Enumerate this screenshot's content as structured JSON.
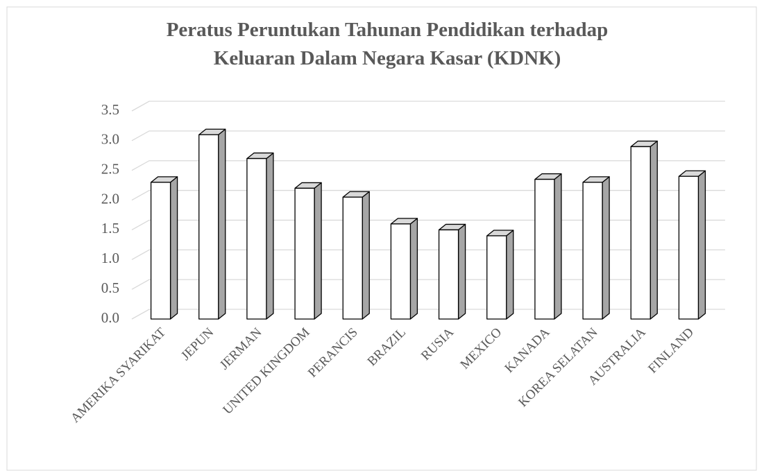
{
  "chart_data": {
    "type": "bar3d",
    "title": [
      "Peratus Peruntukan Tahunan Pendidikan terhadap",
      "Keluaran Dalam Negara Kasar (KDNK)"
    ],
    "categories": [
      "AMERIKA SYARIKAT",
      "JEPUN",
      "JERMAN",
      "UNITED KINGDOM",
      "PERANCIS",
      "BRAZIL",
      "RUSIA",
      "MEXICO",
      "KANADA",
      "KOREA SELATAN",
      "AUSTRALIA",
      "FINLAND"
    ],
    "values": [
      2.3,
      3.1,
      2.7,
      2.2,
      2.05,
      1.6,
      1.5,
      1.4,
      2.35,
      2.3,
      2.9,
      2.4
    ],
    "color": "#ffffff",
    "side_color": "#a6a6a6",
    "top_color": "#d9d9d9",
    "ylim": [
      0,
      3.5
    ],
    "yticks": [
      {
        "value": 0,
        "label": "0.0"
      },
      {
        "value": 0.5,
        "label": "0.5"
      },
      {
        "value": 1,
        "label": "1.0"
      },
      {
        "value": 1.5,
        "label": "1.5"
      },
      {
        "value": 2,
        "label": "2.0"
      },
      {
        "value": 2.5,
        "label": "2.5"
      },
      {
        "value": 3,
        "label": "3.0"
      },
      {
        "value": 3.5,
        "label": "3.5"
      }
    ],
    "grid": true
  }
}
